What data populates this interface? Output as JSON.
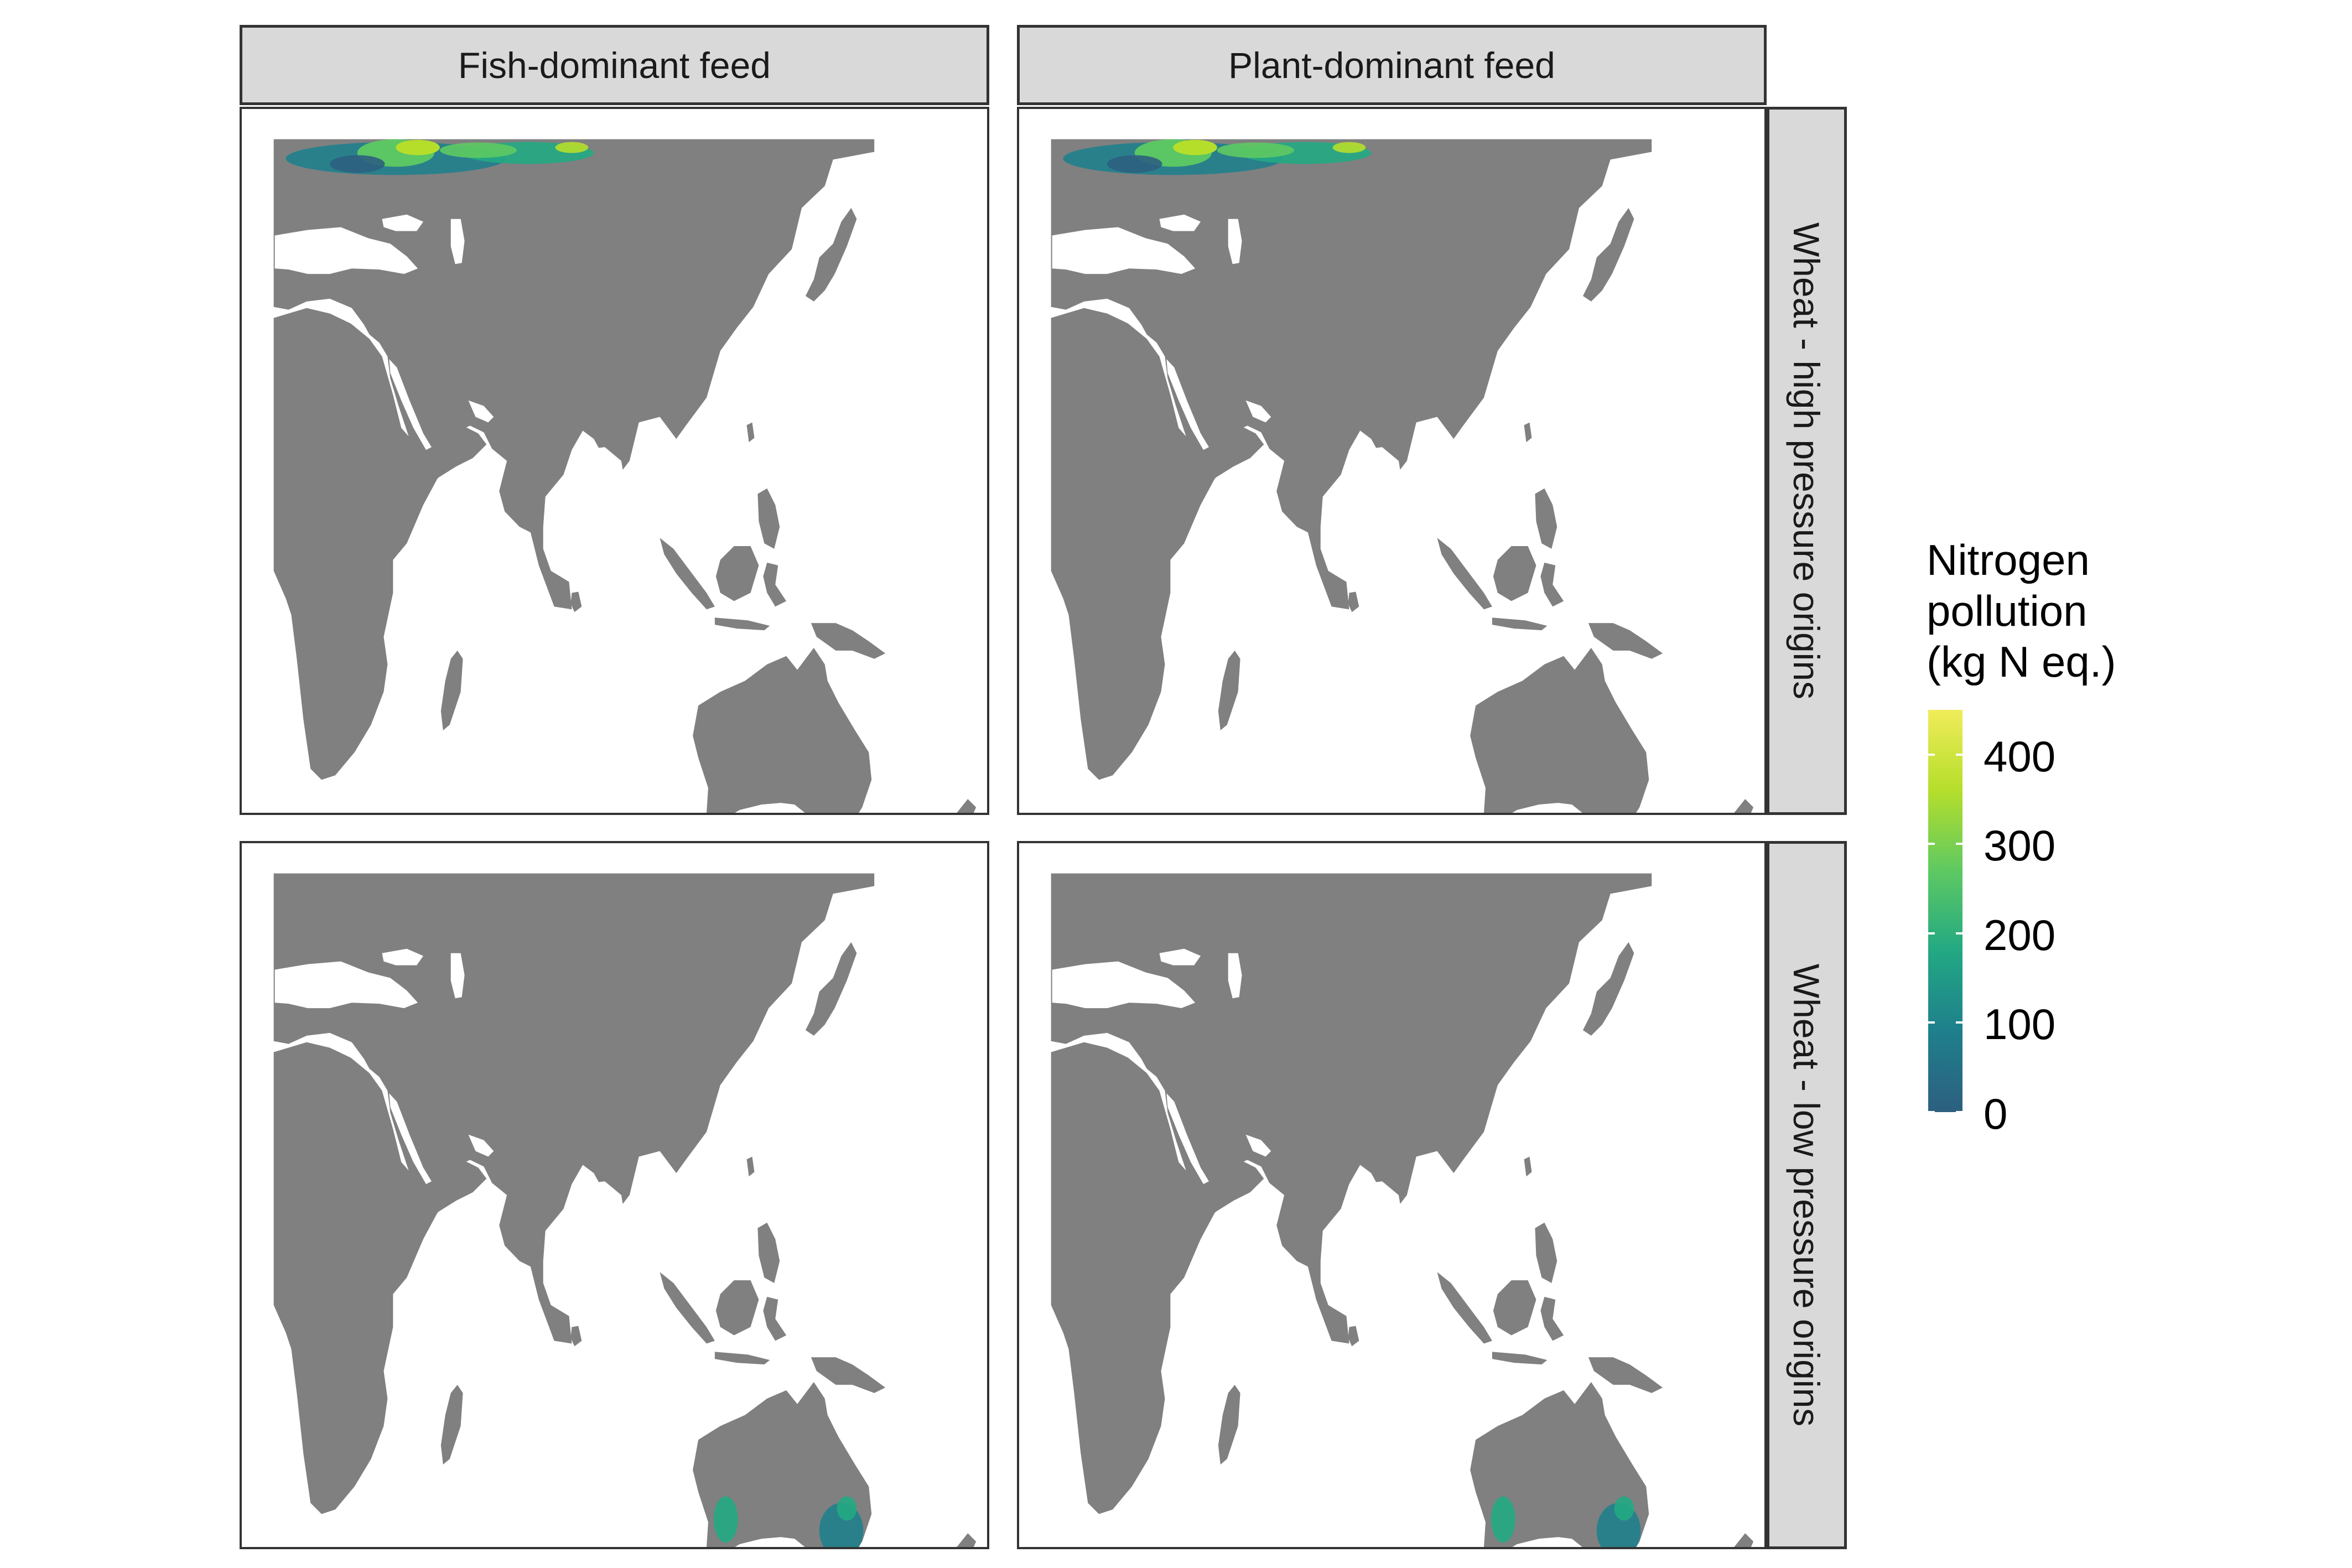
{
  "facets": {
    "columns": [
      "Fish-dominant feed",
      "Plant-dominant feed"
    ],
    "rows": [
      "Wheat - high pressure origins",
      "Wheat - low pressure origins"
    ]
  },
  "legend": {
    "title_lines": [
      "Nitrogen",
      "pollution",
      "(kg N eq.)"
    ],
    "ticks": [
      "400",
      "300",
      "200",
      "100",
      "0"
    ],
    "tick_values": [
      400,
      300,
      200,
      100,
      0
    ],
    "range": [
      0,
      450
    ],
    "palette": [
      "#2c5f7f",
      "#1f7f8c",
      "#22a883",
      "#5ec962",
      "#b5de2b",
      "#f0ec5a"
    ]
  },
  "colors": {
    "land": "#808080",
    "ocean": "#ffffff",
    "strip_bg": "#d9d9d9",
    "border": "#333333"
  },
  "chart_data": {
    "type": "heatmap",
    "layout": "2x2 facet grid of world maps (Africa, Asia, Australia)",
    "hotspot_regions": [
      {
        "row": "Wheat - high pressure origins",
        "region": "Eastern Europe / Russia",
        "value_range": [
          0,
          450
        ]
      },
      {
        "row": "Wheat - low pressure origins",
        "region": "Southern Australia",
        "value_range": [
          0,
          250
        ]
      }
    ]
  }
}
